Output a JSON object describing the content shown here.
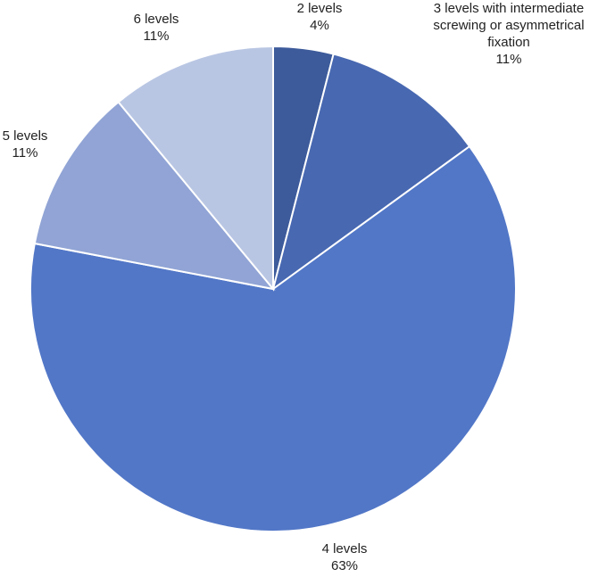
{
  "chart_data": {
    "type": "pie",
    "categories": [
      "2 levels",
      "3 levels with intermediate screwing or asymmetrical fixation",
      "4 levels",
      "5 levels",
      "6 levels"
    ],
    "values": [
      4,
      11,
      63,
      11,
      11
    ],
    "value_labels": [
      "4%",
      "11%",
      "63%",
      "11%",
      "11%"
    ],
    "colors": [
      "#3d5b9b",
      "#4868b1",
      "#5277c7",
      "#91a4d5",
      "#b9c6e3"
    ]
  }
}
